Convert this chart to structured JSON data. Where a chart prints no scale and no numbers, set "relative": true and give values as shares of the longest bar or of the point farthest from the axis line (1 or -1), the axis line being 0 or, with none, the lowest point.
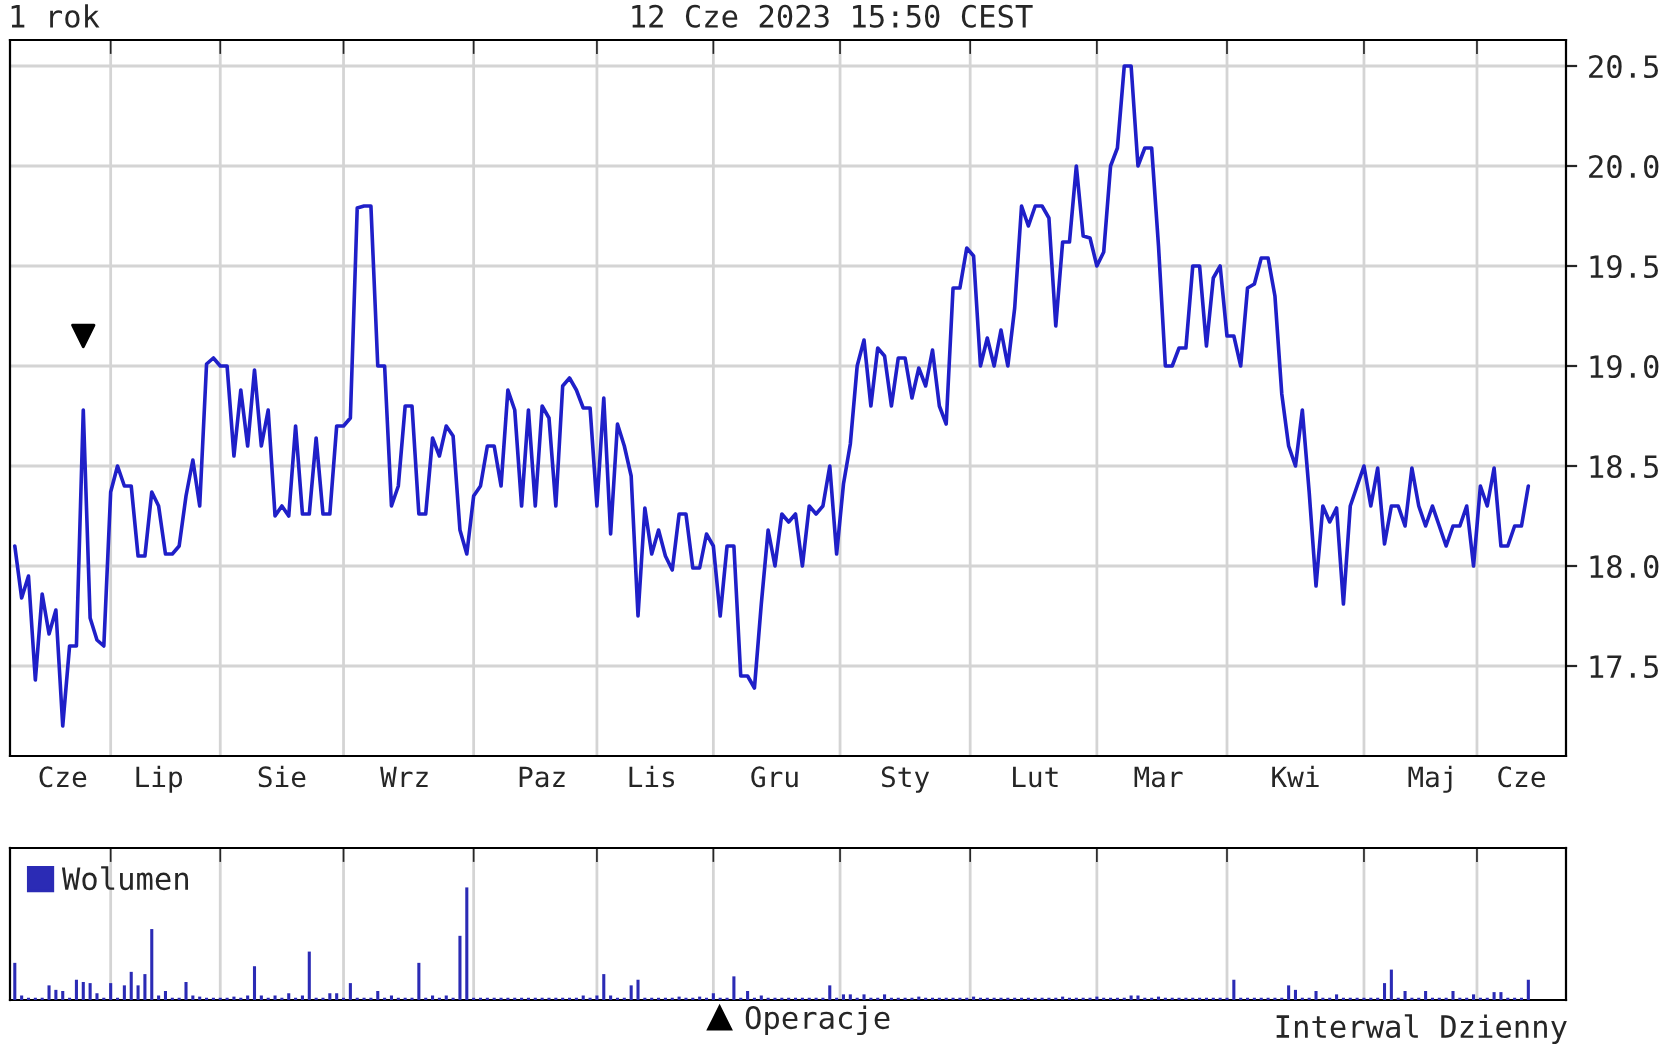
{
  "chart_data": [
    {
      "type": "line",
      "title": "1 rok",
      "subtitle": "12 Cze 2023 15:50 CEST",
      "annotations": [
        "Interwal Dzienny"
      ],
      "categories": [
        null,
        null,
        null,
        null,
        null,
        null,
        null,
        "Cze",
        null,
        null,
        null,
        null,
        null,
        null,
        null,
        null,
        null,
        null,
        null,
        null,
        null,
        "Lip",
        null,
        null,
        null,
        null,
        null,
        null,
        null,
        null,
        null,
        null,
        null,
        null,
        null,
        null,
        null,
        null,
        null,
        "Sie",
        null,
        null,
        null,
        null,
        null,
        null,
        null,
        null,
        null,
        null,
        null,
        null,
        null,
        null,
        null,
        null,
        null,
        "Wrz",
        null,
        null,
        null,
        null,
        null,
        null,
        null,
        null,
        null,
        null,
        null,
        null,
        null,
        null,
        null,
        null,
        null,
        null,
        null,
        "Paz",
        null,
        null,
        null,
        null,
        null,
        null,
        null,
        null,
        null,
        null,
        null,
        null,
        null,
        null,
        null,
        "Lis",
        null,
        null,
        null,
        null,
        null,
        null,
        null,
        null,
        null,
        null,
        null,
        null,
        null,
        null,
        null,
        null,
        null,
        "Gru",
        null,
        null,
        null,
        null,
        null,
        null,
        null,
        null,
        null,
        null,
        null,
        null,
        null,
        null,
        null,
        null,
        null,
        null,
        "Sty",
        null,
        null,
        null,
        null,
        null,
        null,
        null,
        null,
        null,
        null,
        null,
        null,
        null,
        null,
        null,
        null,
        null,
        null,
        "Lut",
        null,
        null,
        null,
        null,
        null,
        null,
        null,
        null,
        null,
        null,
        null,
        null,
        null,
        null,
        null,
        null,
        null,
        "Mar",
        null,
        null,
        null,
        null,
        null,
        null,
        null,
        null,
        null,
        null,
        null,
        null,
        null,
        null,
        null,
        null,
        null,
        null,
        null,
        "Kwi",
        null,
        null,
        null,
        null,
        null,
        null,
        null,
        null,
        null,
        null,
        null,
        null,
        null,
        null,
        null,
        null,
        null,
        null,
        null,
        "Maj",
        null,
        null,
        null,
        null,
        null,
        null,
        null,
        null,
        null,
        null,
        null,
        null,
        "Cze",
        null
      ],
      "ylim": [
        17.05,
        20.63
      ],
      "yticks": [
        17.5,
        {
          "value": 18,
          "label": "18.0"
        },
        18.5,
        {
          "value": 19,
          "label": "19.0"
        },
        19.5,
        {
          "value": 20,
          "label": "20.0"
        },
        20.5
      ],
      "grid": true,
      "legend": "bottom",
      "series": [
        {
          "color": "#1f1fc8",
          "values": [
            18.1,
            17.84,
            17.95,
            17.43,
            17.86,
            17.66,
            17.78,
            17.2,
            17.6,
            17.6,
            18.78,
            17.74,
            17.63,
            17.6,
            18.37,
            18.5,
            18.4,
            18.4,
            18.05,
            18.05,
            18.37,
            18.3,
            18.06,
            18.06,
            18.1,
            18.35,
            18.53,
            18.3,
            19.01,
            19.04,
            19.0,
            19.0,
            18.55,
            18.88,
            18.6,
            18.98,
            18.6,
            18.78,
            18.25,
            18.3,
            18.25,
            18.7,
            18.26,
            18.26,
            18.64,
            18.26,
            18.26,
            18.7,
            18.7,
            18.74,
            19.79,
            19.8,
            19.8,
            19.0,
            19.0,
            18.3,
            18.4,
            18.8,
            18.8,
            18.26,
            18.26,
            18.64,
            18.55,
            18.7,
            18.65,
            18.18,
            18.06,
            18.35,
            18.4,
            18.6,
            18.6,
            18.4,
            18.88,
            18.78,
            18.3,
            18.78,
            18.3,
            18.8,
            18.74,
            18.3,
            18.9,
            18.94,
            18.88,
            18.79,
            18.79,
            18.3,
            18.84,
            18.16,
            18.71,
            18.6,
            18.45,
            17.75,
            18.29,
            18.06,
            18.18,
            18.05,
            17.98,
            18.26,
            18.26,
            17.99,
            17.99,
            18.16,
            18.1,
            17.75,
            18.1,
            18.1,
            17.45,
            17.45,
            17.39,
            17.81,
            18.18,
            18.0,
            18.26,
            18.22,
            18.26,
            18.0,
            18.3,
            18.26,
            18.3,
            18.5,
            18.06,
            18.41,
            18.61,
            19.0,
            19.13,
            18.8,
            19.09,
            19.05,
            18.8,
            19.04,
            19.04,
            18.84,
            18.99,
            18.9,
            19.08,
            18.8,
            18.71,
            19.39,
            19.39,
            19.59,
            19.55,
            19.0,
            19.14,
            19.0,
            19.18,
            19.0,
            19.29,
            19.8,
            19.7,
            19.8,
            19.8,
            19.74,
            19.2,
            19.62,
            19.62,
            20.0,
            19.65,
            19.64,
            19.5,
            19.57,
            20.0,
            20.09,
            20.5,
            20.5,
            20.0,
            20.09,
            20.09,
            19.6,
            19.0,
            19.0,
            19.09,
            19.09,
            19.5,
            19.5,
            19.1,
            19.44,
            19.5,
            19.15,
            19.15,
            19.0,
            19.39,
            19.41,
            19.54,
            19.54,
            19.35,
            18.86,
            18.6,
            18.5,
            18.78,
            18.37,
            17.9,
            18.3,
            18.22,
            18.29,
            17.81,
            18.3,
            18.4,
            18.5,
            18.3,
            18.49,
            18.11,
            18.3,
            18.3,
            18.2,
            18.49,
            18.3,
            18.2,
            18.3,
            18.2,
            18.1,
            18.2,
            18.2,
            18.3,
            18.0,
            18.4,
            18.3,
            18.49,
            18.1,
            18.1,
            18.2,
            18.2,
            18.4
          ]
        },
        {
          "type": "scatter",
          "name": "Operacje",
          "color": "#000000",
          "marker": "triangle",
          "values": [
            null,
            null,
            null,
            null,
            null,
            null,
            null,
            null,
            null,
            null,
            19.15,
            null,
            null,
            null,
            null,
            null,
            null,
            null,
            null,
            null,
            null,
            null,
            null,
            null,
            null,
            null,
            null,
            null,
            null,
            null,
            null,
            null,
            null,
            null,
            null,
            null,
            null,
            null,
            null,
            null,
            null,
            null,
            null,
            null,
            null,
            null,
            null,
            null,
            null,
            null,
            null,
            null,
            null,
            null,
            null,
            null,
            null,
            null,
            null,
            null,
            null,
            null,
            null,
            null,
            null,
            null,
            null,
            null,
            null,
            null,
            null,
            null,
            null,
            null,
            null,
            null,
            null,
            null,
            null,
            null,
            null,
            null,
            null,
            null,
            null,
            null,
            null,
            null,
            null,
            null,
            null,
            null,
            null,
            null,
            null,
            null,
            null,
            null,
            null,
            null,
            null,
            null,
            null,
            null,
            null,
            null,
            null,
            null,
            null,
            null,
            null,
            null,
            null,
            null,
            null,
            null,
            null,
            null,
            null,
            null,
            null,
            null,
            null,
            null,
            null,
            null,
            null,
            null,
            null,
            null,
            null,
            null,
            null,
            null,
            null,
            null,
            null,
            null,
            null,
            null,
            null,
            null,
            null,
            null,
            null,
            null,
            null,
            null,
            null,
            null,
            null,
            null,
            null,
            null,
            null,
            null,
            null,
            null,
            null,
            null,
            null,
            null,
            null,
            null,
            null,
            null,
            null,
            null,
            null,
            null,
            null,
            null,
            null,
            null,
            null,
            null,
            null,
            null,
            null,
            null,
            null,
            null,
            null,
            null,
            null,
            null,
            null,
            null,
            null,
            null,
            null,
            null,
            null,
            null,
            null,
            null,
            null,
            null,
            null,
            null,
            null,
            null,
            null,
            null,
            null,
            null,
            null,
            null,
            null,
            null,
            null,
            null,
            null,
            null,
            null,
            null,
            null,
            null,
            null,
            null,
            null,
            null
          ]
        }
      ]
    },
    {
      "type": "bar",
      "relative": true,
      "legend": "top left",
      "grid": "x",
      "categories": [
        null,
        null,
        null,
        null,
        null,
        null,
        null,
        null,
        null,
        null,
        null,
        null,
        null,
        null,
        null,
        null,
        null,
        null,
        null,
        null,
        null,
        null,
        null,
        null,
        null,
        null,
        null,
        null,
        null,
        null,
        null,
        null,
        null,
        null,
        null,
        null,
        null,
        null,
        null,
        null,
        null,
        null,
        null,
        null,
        null,
        null,
        null,
        null,
        null,
        null,
        null,
        null,
        null,
        null,
        null,
        null,
        null,
        null,
        null,
        null,
        null,
        null,
        null,
        null,
        null,
        null,
        null,
        null,
        null,
        null,
        null,
        null,
        null,
        null,
        null,
        null,
        null,
        null,
        null,
        null,
        null,
        null,
        null,
        null,
        null,
        null,
        null,
        null,
        null,
        null,
        null,
        null,
        null,
        null,
        null,
        null,
        null,
        null,
        null,
        null,
        null,
        null,
        null,
        null,
        null,
        null,
        null,
        null,
        null,
        null,
        null,
        null,
        null,
        null,
        null,
        null,
        null,
        null,
        null,
        null,
        null,
        null,
        null,
        null,
        null,
        null,
        null,
        null,
        null,
        null,
        null,
        null,
        null,
        null,
        null,
        null,
        null,
        null,
        null,
        null,
        null,
        null,
        null,
        null,
        null,
        null,
        null,
        null,
        null,
        null,
        null,
        null,
        null,
        null,
        null,
        null,
        null,
        null,
        null,
        null,
        null,
        null,
        null,
        null,
        null,
        null,
        null,
        null,
        null,
        null,
        null,
        null,
        null,
        null,
        null,
        null,
        null,
        null,
        null,
        null,
        null,
        null,
        null,
        null,
        null,
        null,
        null,
        null,
        null,
        null,
        null,
        null,
        null,
        null,
        null,
        null,
        null,
        null,
        null,
        null,
        null,
        null,
        null,
        null,
        null,
        null,
        null,
        null,
        null,
        null,
        null,
        null,
        null,
        null,
        null,
        null,
        null,
        null,
        null,
        null,
        null,
        null
      ],
      "series": [
        {
          "name": "Wolumen",
          "color": "#2b2bb5",
          "values": [
            0.33,
            0.04,
            0.02,
            0.02,
            0.02,
            0.13,
            0.09,
            0.08,
            0.02,
            0.18,
            0.16,
            0.15,
            0.06,
            0.02,
            0.15,
            0.02,
            0.13,
            0.25,
            0.13,
            0.23,
            0.63,
            0.04,
            0.08,
            0.02,
            0.02,
            0.16,
            0.04,
            0.03,
            0.02,
            0.02,
            0.02,
            0.02,
            0.03,
            0.02,
            0.04,
            0.3,
            0.04,
            0.02,
            0.04,
            0.02,
            0.06,
            0.02,
            0.04,
            0.43,
            0.02,
            0.02,
            0.06,
            0.06,
            0.02,
            0.15,
            0.02,
            0.02,
            0.02,
            0.08,
            0.02,
            0.04,
            0.02,
            0.02,
            0.02,
            0.33,
            0.02,
            0.04,
            0.02,
            0.04,
            0.02,
            0.57,
            1.0,
            0.02,
            0.02,
            0.02,
            0.02,
            0.02,
            0.02,
            0.02,
            0.02,
            0.02,
            0.02,
            0.02,
            0.02,
            0.02,
            0.02,
            0.02,
            0.02,
            0.04,
            0.02,
            0.04,
            0.23,
            0.04,
            0.02,
            0.02,
            0.13,
            0.18,
            0.02,
            0.02,
            0.02,
            0.02,
            0.02,
            0.03,
            0.02,
            0.02,
            0.03,
            0.02,
            0.06,
            0.02,
            0.02,
            0.21,
            0.02,
            0.08,
            0.02,
            0.04,
            0.02,
            0.02,
            0.02,
            0.02,
            0.02,
            0.02,
            0.02,
            0.02,
            0.02,
            0.13,
            0.02,
            0.05,
            0.05,
            0.02,
            0.05,
            0.02,
            0.02,
            0.05,
            0.02,
            0.02,
            0.02,
            0.02,
            0.03,
            0.02,
            0.02,
            0.02,
            0.02,
            0.02,
            0.02,
            0.02,
            0.03,
            0.02,
            0.02,
            0.02,
            0.02,
            0.02,
            0.02,
            0.02,
            0.02,
            0.02,
            0.02,
            0.02,
            0.02,
            0.03,
            0.02,
            0.02,
            0.02,
            0.02,
            0.03,
            0.02,
            0.02,
            0.02,
            0.02,
            0.04,
            0.04,
            0.02,
            0.02,
            0.03,
            0.02,
            0.02,
            0.02,
            0.02,
            0.02,
            0.02,
            0.02,
            0.02,
            0.02,
            0.02,
            0.18,
            0.02,
            0.02,
            0.02,
            0.02,
            0.02,
            0.02,
            0.02,
            0.13,
            0.09,
            0.02,
            0.02,
            0.08,
            0.02,
            0.02,
            0.05,
            0.02,
            0.02,
            0.02,
            0.02,
            0.02,
            0.02,
            0.15,
            0.27,
            0.02,
            0.08,
            0.02,
            0.02,
            0.08,
            0.02,
            0.02,
            0.02,
            0.08,
            0.02,
            0.02,
            0.05,
            0.02,
            0.02,
            0.07,
            0.07,
            0.02,
            0.02,
            0.02,
            0.18
          ]
        }
      ]
    }
  ]
}
